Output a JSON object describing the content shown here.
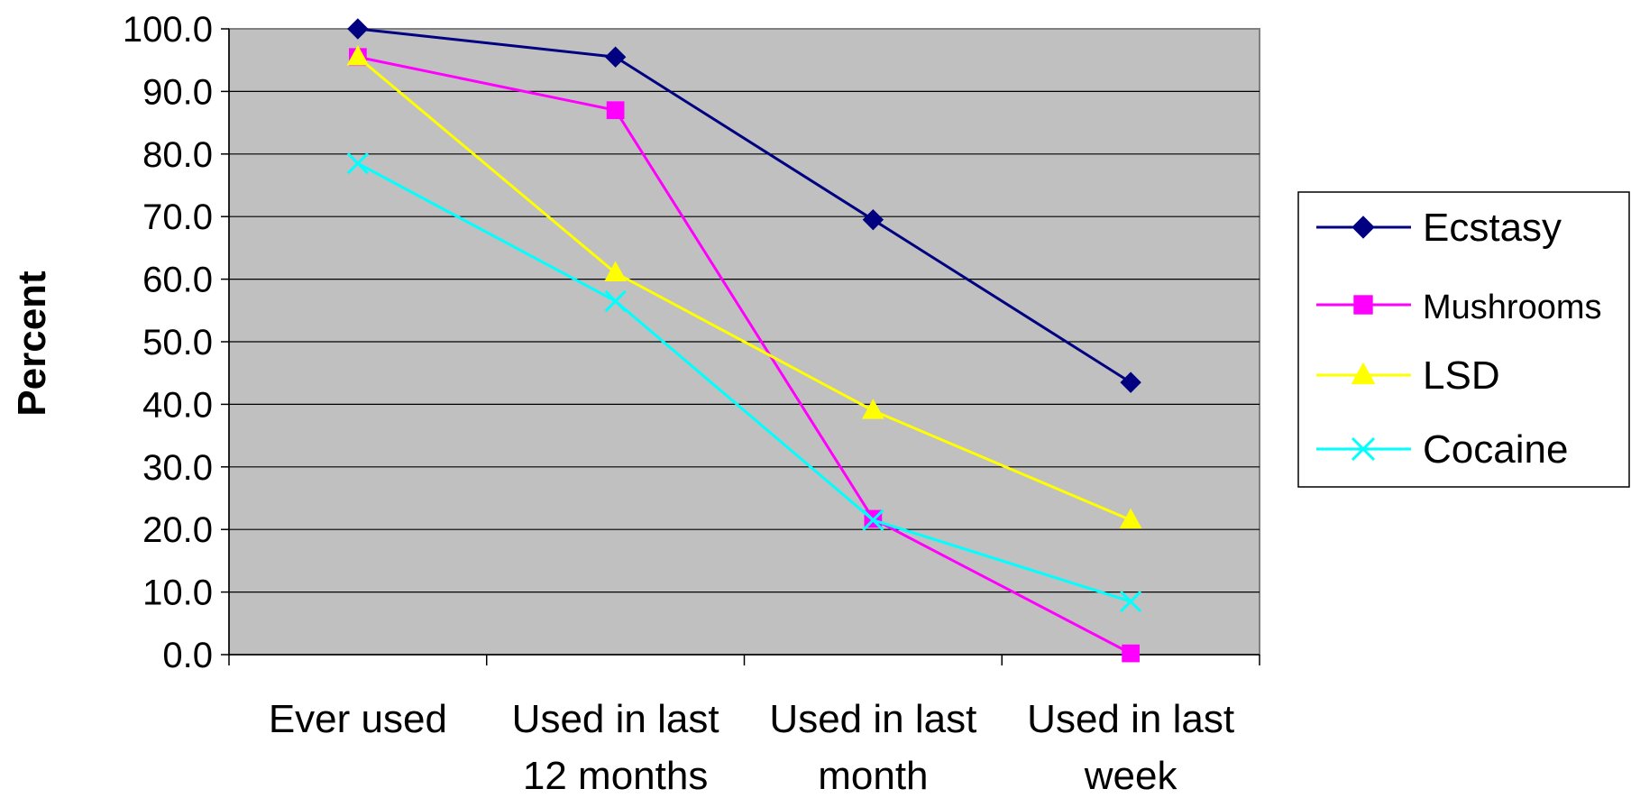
{
  "chart_data": {
    "type": "line",
    "title": "",
    "xlabel": "",
    "ylabel": "Percent",
    "categories": [
      [
        "Ever used"
      ],
      [
        "Used in last",
        "12 months"
      ],
      [
        "Used in last",
        "month"
      ],
      [
        "Used in last",
        "week"
      ]
    ],
    "ylim": [
      0,
      100
    ],
    "yticks": [
      "0.0",
      "10.0",
      "20.0",
      "30.0",
      "40.0",
      "50.0",
      "60.0",
      "70.0",
      "80.0",
      "90.0",
      "100.0"
    ],
    "grid": true,
    "legend_position": "right",
    "plot_background": "#c0c0c0",
    "series": [
      {
        "name": "Ecstasy",
        "color": "#000080",
        "marker": "diamond",
        "values": [
          100.0,
          95.5,
          69.5,
          43.5
        ]
      },
      {
        "name": "Mushrooms",
        "color": "#ff00ff",
        "marker": "square",
        "values": [
          95.5,
          87.0,
          21.7,
          0.2
        ]
      },
      {
        "name": "LSD",
        "color": "#ffff00",
        "marker": "triangle",
        "values": [
          95.5,
          61.0,
          39.0,
          21.5
        ]
      },
      {
        "name": "Cocaine",
        "color": "#00ffff",
        "marker": "x",
        "values": [
          78.5,
          56.5,
          21.5,
          8.5
        ]
      }
    ]
  }
}
